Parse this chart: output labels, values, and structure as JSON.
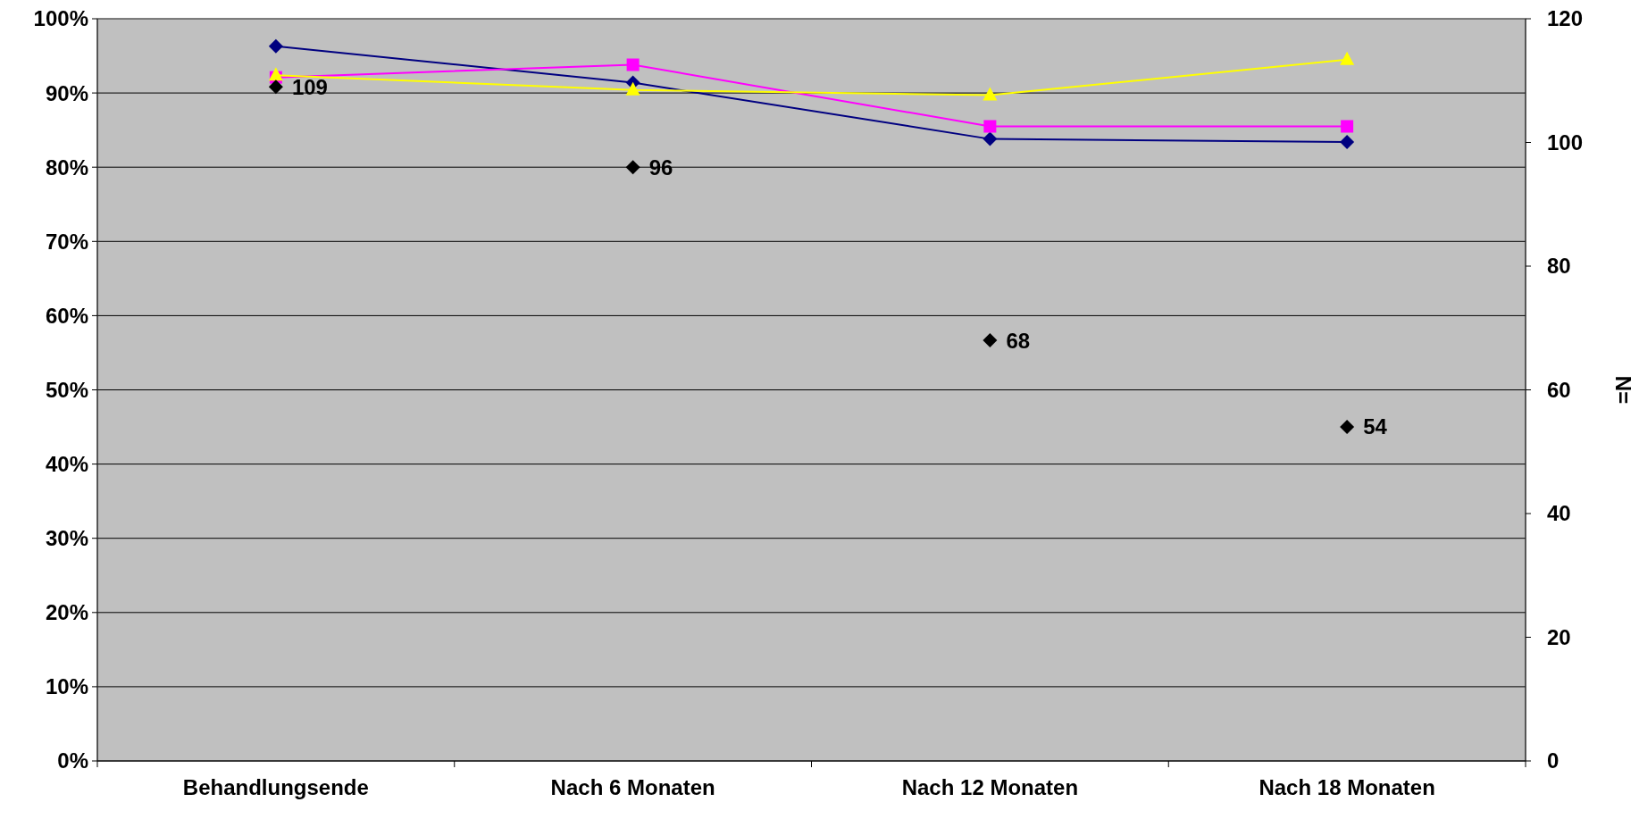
{
  "chart_data": {
    "type": "line",
    "categories": [
      "Behandlungsende",
      "Nach 6 Monaten",
      "Nach 12 Monaten",
      "Nach 18 Monaten"
    ],
    "y2label": "N=",
    "ylim": [
      0,
      1
    ],
    "yticks": [
      {
        "value": 0,
        "label": "0%"
      },
      {
        "value": 0.1,
        "label": "10%"
      },
      {
        "value": 0.2,
        "label": "20%"
      },
      {
        "value": 0.3,
        "label": "30%"
      },
      {
        "value": 0.4,
        "label": "40%"
      },
      {
        "value": 0.5,
        "label": "50%"
      },
      {
        "value": 0.6,
        "label": "60%"
      },
      {
        "value": 0.7,
        "label": "70%"
      },
      {
        "value": 0.8,
        "label": "80%"
      },
      {
        "value": 0.9,
        "label": "90%"
      },
      {
        "value": 1,
        "label": "100%"
      }
    ],
    "y2lim": [
      0,
      120
    ],
    "y2ticks": [
      0,
      20,
      40,
      60,
      80,
      100,
      120
    ],
    "grid": "y",
    "series": [
      {
        "color": "#000080",
        "marker": "diamond",
        "values": [
          0.963,
          0.914,
          0.838,
          0.834
        ]
      },
      {
        "color": "#ff00ff",
        "marker": "square",
        "values": [
          0.921,
          0.938,
          0.855,
          0.855
        ]
      },
      {
        "color": "#ffff00",
        "marker": "triangle",
        "values": [
          0.924,
          0.904,
          0.897,
          0.945
        ]
      },
      {
        "type": "scatter",
        "axis": "y2",
        "color": "#000000",
        "marker": "diamond",
        "values": [
          109,
          96,
          68,
          54
        ],
        "value_labels": [
          "109",
          "96",
          "68",
          "54"
        ]
      }
    ]
  }
}
